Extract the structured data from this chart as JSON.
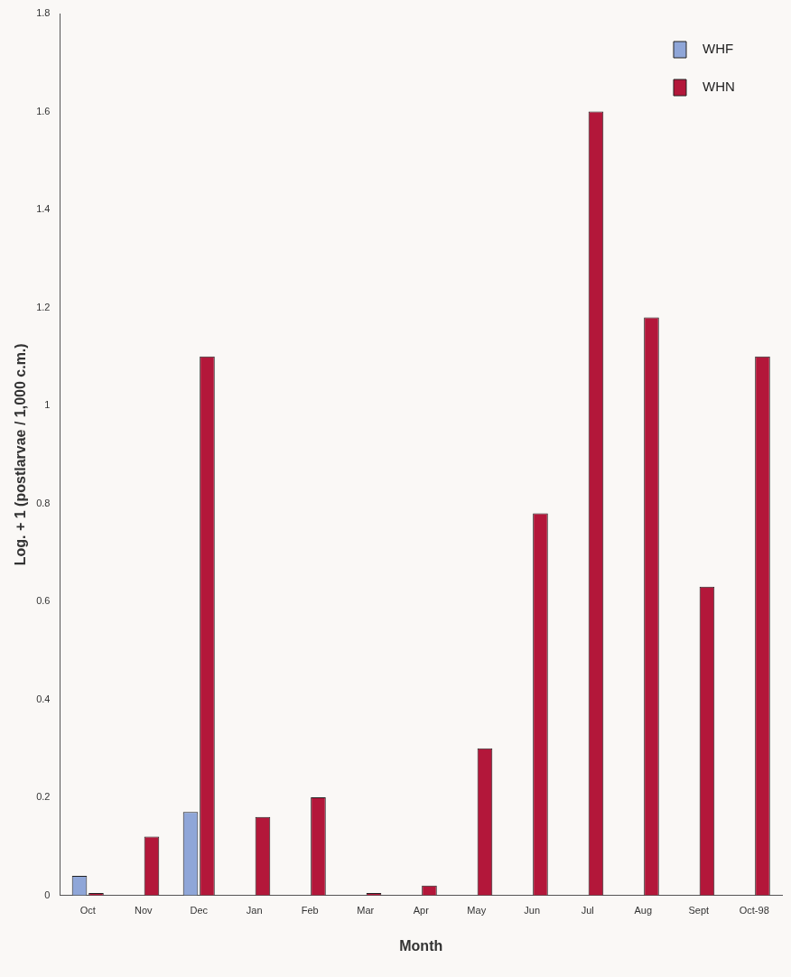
{
  "chart_data": {
    "type": "bar",
    "xlabel": "Month",
    "ylabel": "Log. + 1 (postlarvae / 1,000 c.m.)",
    "categories": [
      "Oct",
      "Nov",
      "Dec",
      "Jan",
      "Feb",
      "Mar",
      "Apr",
      "May",
      "Jun",
      "Jul",
      "Aug",
      "Sept",
      "Oct-98"
    ],
    "series": [
      {
        "name": "WHF",
        "color": "#8fa6d8",
        "values": [
          0.04,
          0,
          0.17,
          0,
          0,
          0,
          0,
          0,
          0,
          0,
          0,
          0,
          0
        ]
      },
      {
        "name": "WHN",
        "color": "#b3173a",
        "values": [
          0.005,
          0.12,
          1.1,
          0.16,
          0.2,
          0.005,
          0.02,
          0.3,
          0.78,
          1.6,
          1.18,
          0.63,
          1.1
        ]
      }
    ],
    "ylim": [
      0,
      1.8
    ],
    "yticks": [
      0,
      0.2,
      0.4,
      0.6,
      0.8,
      1,
      1.2,
      1.4,
      1.6,
      1.8
    ],
    "grid": false,
    "legend": "top right"
  }
}
